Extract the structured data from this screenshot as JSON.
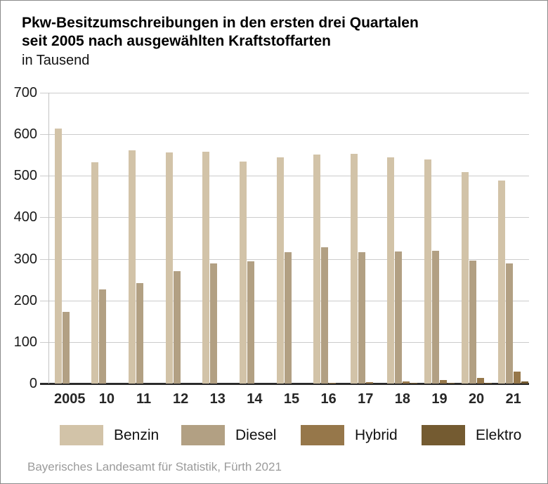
{
  "title": {
    "line1": "Pkw-Besitzumschreibungen in den ersten drei Quartalen",
    "line2": "seit 2005 nach ausgewählten Kraftstoffarten",
    "subtitle": "in Tausend"
  },
  "source": "Bayerisches Landesamt für Statistik, Fürth 2021",
  "colors": {
    "benzin": "#d2c3a8",
    "diesel": "#b2a083",
    "hybrid": "#96774a",
    "elektro": "#745b31",
    "gridline": "#cccccc",
    "axis": "#2b2b2b",
    "tick_text": "#1a1a1a",
    "source_text": "#9b9b9b",
    "frame_border": "#8a8a8a"
  },
  "chart_data": {
    "type": "bar",
    "title": "Pkw-Besitzumschreibungen in den ersten drei Quartalen seit 2005 nach ausgewählten Kraftstoffarten",
    "subtitle": "in Tausend",
    "categories": [
      "2005",
      "10",
      "11",
      "12",
      "13",
      "14",
      "15",
      "16",
      "17",
      "18",
      "19",
      "20",
      "21"
    ],
    "series": [
      {
        "name": "Benzin",
        "color": "#d2c3a8",
        "values": [
          613,
          533,
          562,
          557,
          558,
          534,
          545,
          551,
          553,
          545,
          540,
          509,
          489
        ]
      },
      {
        "name": "Diesel",
        "color": "#b2a083",
        "values": [
          172,
          227,
          241,
          271,
          289,
          295,
          317,
          328,
          317,
          318,
          320,
          296,
          289
        ]
      },
      {
        "name": "Hybrid",
        "color": "#96774a",
        "values": [
          0,
          0,
          0,
          0,
          0,
          0,
          0,
          2,
          3,
          5,
          8,
          13,
          28
        ]
      },
      {
        "name": "Elektro",
        "color": "#745b31",
        "values": [
          0,
          0,
          0,
          0,
          0,
          0,
          0,
          0,
          0,
          1,
          1,
          2,
          5
        ]
      }
    ],
    "xlabel": "",
    "ylabel": "in Tausend",
    "ylim": [
      0,
      700
    ],
    "yticks": [
      0,
      100,
      200,
      300,
      400,
      500,
      600,
      700
    ],
    "grid": true,
    "legend_position": "bottom"
  }
}
